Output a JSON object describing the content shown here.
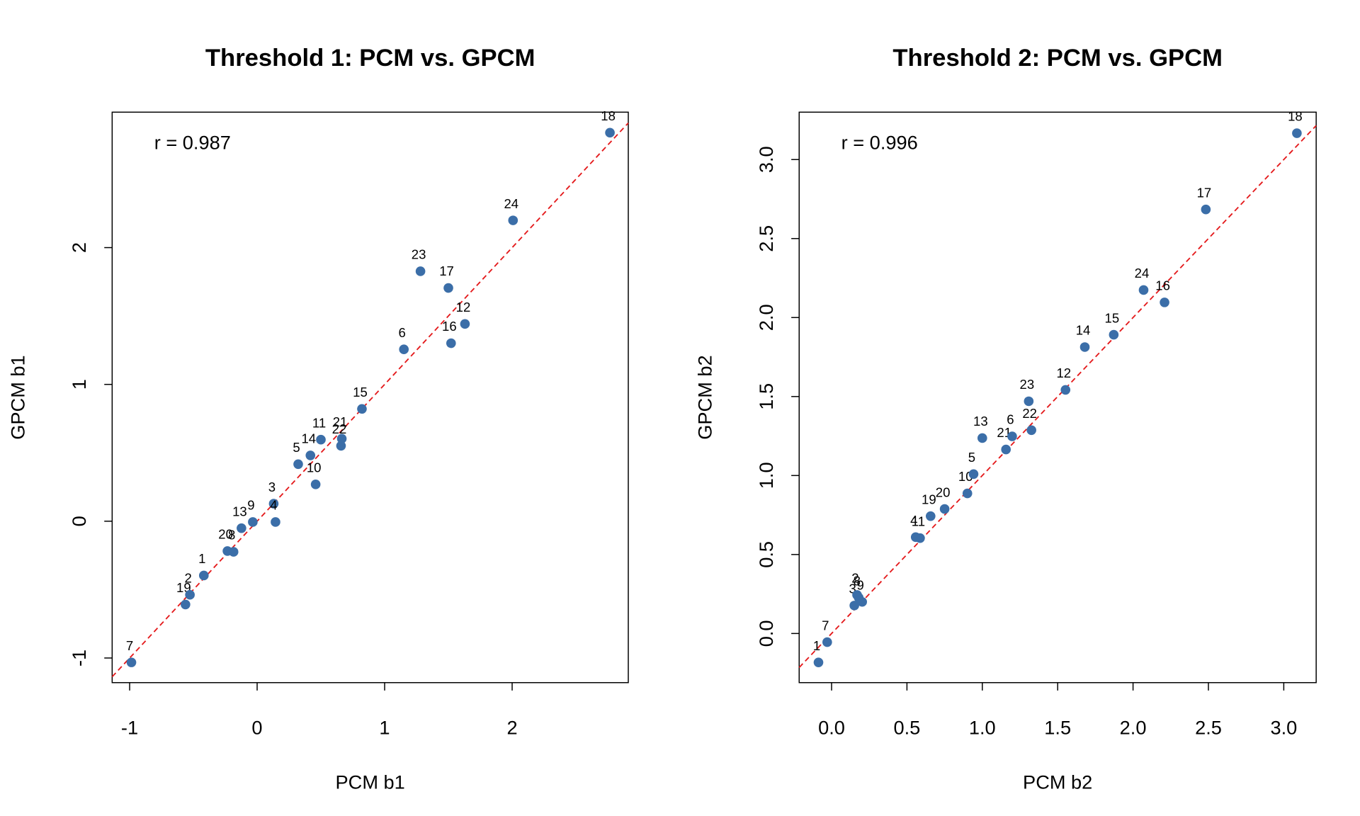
{
  "chart_data": [
    {
      "type": "scatter",
      "title": "Threshold 1: PCM vs. GPCM",
      "xlabel": "PCM b1",
      "ylabel": "GPCM b1",
      "annotation": "r = 0.987",
      "color": "#3b6ea8",
      "diagonal": true,
      "diagonal_color": "#e41a1c",
      "xlim": [
        -1.137,
        2.911
      ],
      "ylim": [
        -1.18,
        2.99
      ],
      "xticks": [
        -1,
        0,
        1,
        2
      ],
      "yticks": [
        -1,
        0,
        1,
        2
      ],
      "labels": [
        "7",
        "19",
        "2",
        "1",
        "20",
        "8",
        "13",
        "9",
        "3",
        "4",
        "5",
        "14",
        "10",
        "11",
        "21",
        "22",
        "15",
        "6",
        "23",
        "17",
        "16",
        "12",
        "24",
        "18"
      ],
      "x": [
        -0.986,
        -0.562,
        -0.527,
        -0.418,
        -0.233,
        -0.185,
        -0.123,
        -0.034,
        0.13,
        0.144,
        0.322,
        0.418,
        0.459,
        0.5,
        0.664,
        0.658,
        0.822,
        1.151,
        1.281,
        1.5,
        1.521,
        1.63,
        2.007,
        2.767
      ],
      "values": [
        -1.032,
        -0.609,
        -0.538,
        -0.397,
        -0.218,
        -0.224,
        -0.051,
        -0.006,
        0.128,
        -0.006,
        0.417,
        0.481,
        0.269,
        0.596,
        0.603,
        0.551,
        0.821,
        1.256,
        1.827,
        1.705,
        1.301,
        1.442,
        2.199,
        2.84
      ]
    },
    {
      "type": "scatter",
      "title": "Threshold 2: PCM vs. GPCM",
      "xlabel": "PCM b2",
      "ylabel": "GPCM b2",
      "annotation": "r = 0.996",
      "color": "#3b6ea8",
      "diagonal": true,
      "diagonal_color": "#e41a1c",
      "xlim": [
        -0.215,
        3.215
      ],
      "ylim": [
        -0.311,
        3.3
      ],
      "xticks": [
        {
          "value": 0,
          "label": "0.0"
        },
        0.5,
        {
          "value": 1,
          "label": "1.0"
        },
        1.5,
        {
          "value": 2,
          "label": "2.0"
        },
        2.5,
        {
          "value": 3,
          "label": "3.0"
        }
      ],
      "yticks": [
        {
          "value": 0,
          "label": "0.0"
        },
        0.5,
        {
          "value": 1,
          "label": "1.0"
        },
        1.5,
        {
          "value": 2,
          "label": "2.0"
        },
        2.5,
        {
          "value": 3,
          "label": "3.0"
        }
      ],
      "labels": [
        "1",
        "7",
        "3",
        "2",
        "8",
        "9",
        "4",
        "11",
        "19",
        "20",
        "10",
        "5",
        "13",
        "21",
        "6",
        "22",
        "23",
        "12",
        "14",
        "15",
        "24",
        "16",
        "17",
        "18"
      ],
      "x": [
        -0.087,
        -0.029,
        0.151,
        0.169,
        0.18,
        0.203,
        0.558,
        0.587,
        0.657,
        0.75,
        0.901,
        0.942,
        1.0,
        1.157,
        1.198,
        1.326,
        1.308,
        1.552,
        1.68,
        1.872,
        2.07,
        2.209,
        2.483,
        3.087
      ],
      "values": [
        -0.183,
        -0.055,
        0.177,
        0.244,
        0.227,
        0.2,
        0.61,
        0.604,
        0.743,
        0.788,
        0.887,
        1.009,
        1.237,
        1.165,
        1.248,
        1.287,
        1.47,
        1.542,
        1.813,
        1.891,
        2.174,
        2.096,
        2.684,
        3.167
      ]
    }
  ]
}
